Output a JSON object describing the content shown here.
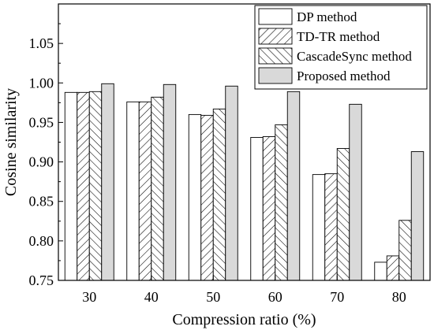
{
  "chart_data": {
    "type": "bar",
    "title": "",
    "xlabel": "Compression ratio (%)",
    "ylabel": "Cosine similarity",
    "ylim": [
      0.75,
      1.1
    ],
    "yticks": [
      "0.75",
      "0.80",
      "0.85",
      "0.90",
      "0.95",
      "1.00",
      "1.05"
    ],
    "categories": [
      "30",
      "40",
      "50",
      "60",
      "70",
      "80"
    ],
    "legend_position": "top-right",
    "grid": false,
    "series": [
      {
        "name": "DP method",
        "pattern": "none",
        "fill": "#ffffff",
        "values": [
          0.988,
          0.976,
          0.96,
          0.931,
          0.884,
          0.773
        ]
      },
      {
        "name": "TD-TR method",
        "pattern": "hatch-forward",
        "fill": "#ffffff",
        "values": [
          0.988,
          0.976,
          0.959,
          0.932,
          0.885,
          0.781
        ]
      },
      {
        "name": "CascadeSync method",
        "pattern": "hatch-backward",
        "fill": "#ffffff",
        "values": [
          0.989,
          0.982,
          0.967,
          0.947,
          0.917,
          0.826
        ]
      },
      {
        "name": "Proposed method",
        "pattern": "none",
        "fill": "#d9d9d9",
        "values": [
          0.999,
          0.998,
          0.996,
          0.989,
          0.973,
          0.913
        ]
      }
    ]
  }
}
